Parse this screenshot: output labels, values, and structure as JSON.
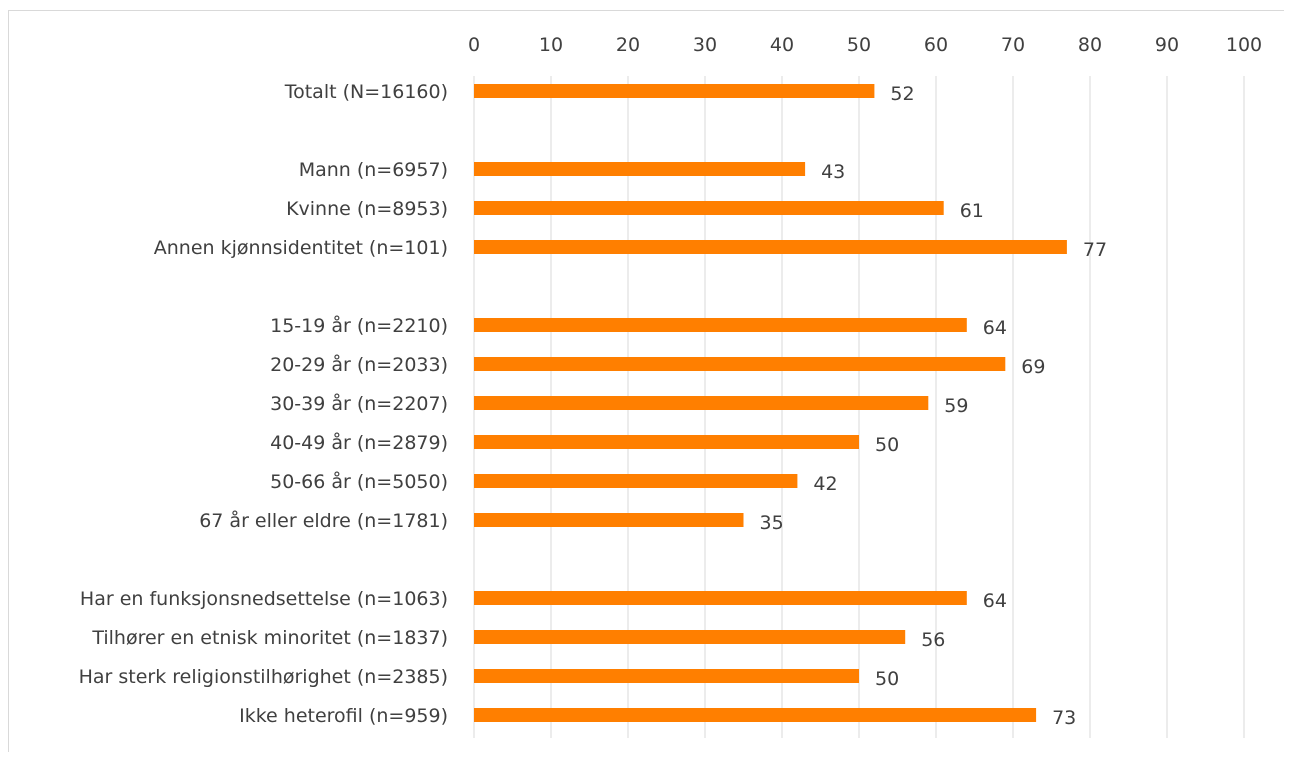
{
  "chart_data": {
    "type": "bar",
    "orientation": "horizontal",
    "title": "",
    "xlabel": "",
    "ylabel": "",
    "xlim": [
      0,
      100
    ],
    "x_ticks": [
      0,
      10,
      20,
      30,
      40,
      50,
      60,
      70,
      80,
      90,
      100
    ],
    "grid": true,
    "bar_color": "#FF7F00",
    "groups": [
      {
        "rows": [
          {
            "label": "Totalt (N=16160)",
            "value": 52
          }
        ]
      },
      {
        "rows": [
          {
            "label": "Mann (n=6957)",
            "value": 43
          },
          {
            "label": "Kvinne (n=8953)",
            "value": 61
          },
          {
            "label": "Annen kjønnsidentitet (n=101)",
            "value": 77
          }
        ]
      },
      {
        "rows": [
          {
            "label": "15-19 år (n=2210)",
            "value": 64
          },
          {
            "label": "20-29 år (n=2033)",
            "value": 69
          },
          {
            "label": "30-39 år (n=2207)",
            "value": 59
          },
          {
            "label": "40-49 år (n=2879)",
            "value": 50
          },
          {
            "label": "50-66 år (n=5050)",
            "value": 42
          },
          {
            "label": "67 år eller eldre (n=1781)",
            "value": 35
          }
        ]
      },
      {
        "rows": [
          {
            "label": "Har en funksjonsnedsettelse (n=1063)",
            "value": 64
          },
          {
            "label": "Tilhører en etnisk minoritet (n=1837)",
            "value": 56
          },
          {
            "label": "Har sterk religionstilhørighet (n=2385)",
            "value": 50
          },
          {
            "label": "Ikke heterofil (n=959)",
            "value": 73
          }
        ]
      }
    ]
  }
}
